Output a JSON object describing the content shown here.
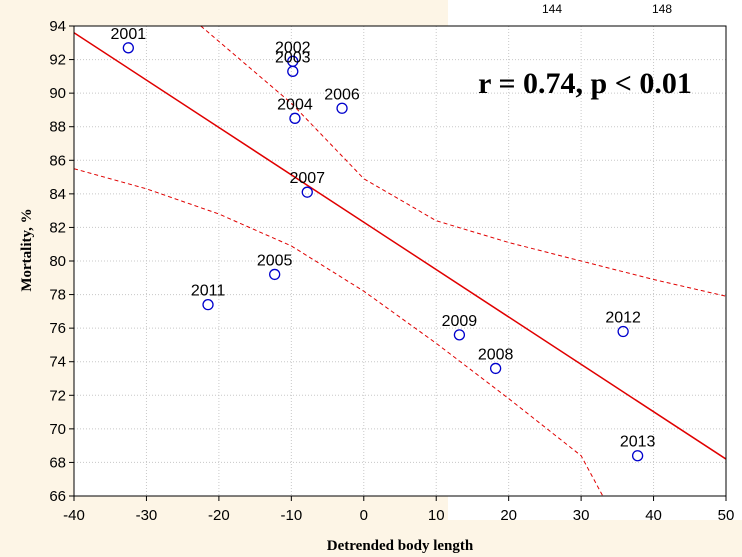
{
  "colors": {
    "background": "#fdf5e6",
    "plot_background": "#ffffff",
    "grid": "#c8c8c8",
    "fit_line": "#e00000",
    "confidence_band": "#e00000",
    "points": "#0000cc"
  },
  "corner_fragment": [
    "144",
    "148"
  ],
  "chart_data": {
    "type": "scatter",
    "title": "",
    "xlabel": "Detrended body length",
    "ylabel": "Mortality, %",
    "annotation": "r = 0.74, p < 0.01",
    "xlim": [
      -40,
      50
    ],
    "ylim": [
      66,
      94
    ],
    "x_ticks": [
      -40,
      -30,
      -20,
      -10,
      0,
      10,
      20,
      30,
      40,
      50
    ],
    "y_ticks": [
      66,
      68,
      70,
      72,
      74,
      76,
      78,
      80,
      82,
      84,
      86,
      88,
      90,
      92,
      94
    ],
    "grid": true,
    "points": [
      {
        "label": "2001",
        "x": -32.5,
        "y": 92.7
      },
      {
        "label": "2002",
        "x": -9.8,
        "y": 91.9
      },
      {
        "label": "2003",
        "x": -9.8,
        "y": 91.3
      },
      {
        "label": "2004",
        "x": -9.5,
        "y": 88.5
      },
      {
        "label": "2005",
        "x": -12.3,
        "y": 79.2
      },
      {
        "label": "2006",
        "x": -3.0,
        "y": 89.1
      },
      {
        "label": "2007",
        "x": -7.8,
        "y": 84.1
      },
      {
        "label": "2008",
        "x": 18.2,
        "y": 73.6
      },
      {
        "label": "2009",
        "x": 13.2,
        "y": 75.6
      },
      {
        "label": "2011",
        "x": -21.5,
        "y": 77.4
      },
      {
        "label": "2012",
        "x": 35.8,
        "y": 75.8
      },
      {
        "label": "2013",
        "x": 37.8,
        "y": 68.4
      }
    ],
    "fit_line": {
      "x": [
        -40,
        50
      ],
      "y": [
        93.6,
        68.2
      ]
    },
    "confidence_band": {
      "upper": {
        "x": [
          -22.5,
          -10,
          0,
          10,
          20,
          30,
          40,
          50
        ],
        "y": [
          94,
          89.4,
          84.9,
          82.4,
          81.1,
          80.0,
          78.9,
          77.9
        ]
      },
      "lower": {
        "x": [
          -40,
          -30,
          -20,
          -10,
          0,
          10,
          20,
          30,
          33
        ],
        "y": [
          85.5,
          84.3,
          82.8,
          80.9,
          78.2,
          75.1,
          71.8,
          68.4,
          66
        ]
      }
    }
  }
}
